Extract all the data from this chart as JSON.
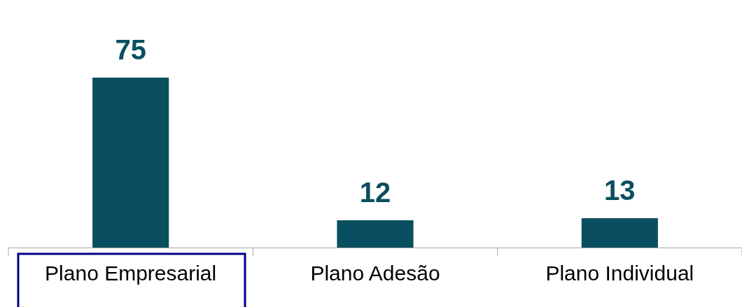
{
  "chart_data": {
    "type": "bar",
    "categories": [
      "Plano Empresarial",
      "Plano Adesão",
      "Plano Individual"
    ],
    "values": [
      75,
      12,
      13
    ],
    "color": "#0a4f5f",
    "data_labels": true
  }
}
